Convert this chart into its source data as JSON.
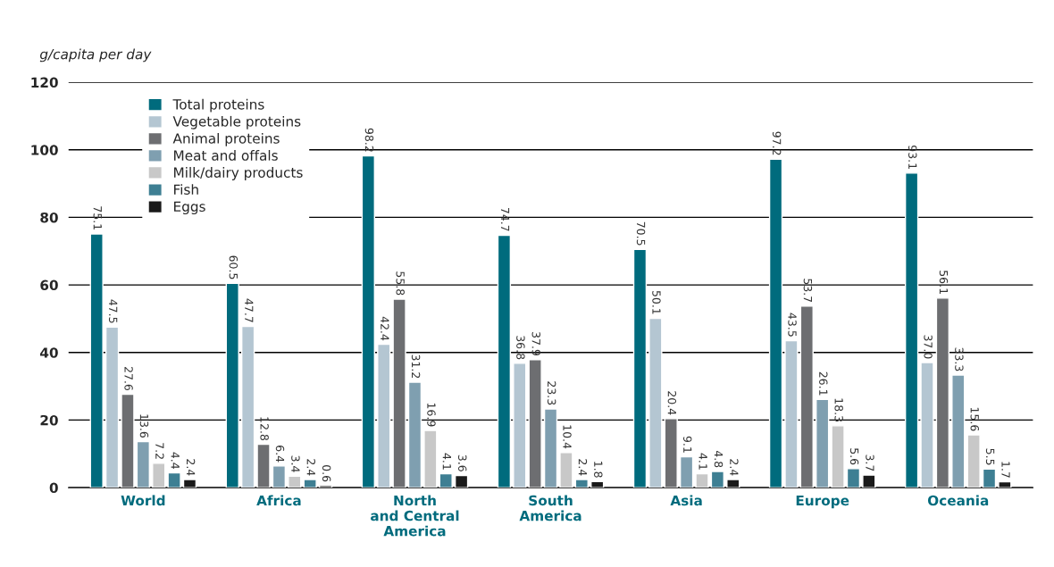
{
  "chart_data": {
    "type": "bar",
    "ylabel": "g/capita per day",
    "categories": [
      "World",
      "Africa",
      "North\nand Central\nAmerica",
      "South\nAmerica",
      "Asia",
      "Europe",
      "Oceania"
    ],
    "series": [
      {
        "name": "Total proteins",
        "color": "#006b7d",
        "values": [
          75.1,
          60.5,
          98.2,
          74.7,
          70.5,
          97.2,
          93.1
        ],
        "value_labels": [
          "75.1",
          "60.5",
          "98.2",
          "74.7",
          "70.5",
          "97.2",
          "93.1"
        ]
      },
      {
        "name": "Vegetable proteins",
        "color": "#b4c6d2",
        "values": [
          47.5,
          47.7,
          42.4,
          36.8,
          50.1,
          43.5,
          37.0
        ],
        "value_labels": [
          "47.5",
          "47.7",
          "42.4",
          "36.8",
          "50.1",
          "43.5",
          "37.0"
        ]
      },
      {
        "name": "Animal proteins",
        "color": "#6d6e71",
        "values": [
          27.6,
          12.8,
          55.8,
          37.9,
          20.4,
          53.7,
          56.1
        ],
        "value_labels": [
          "27.6",
          "12.8",
          "55.8",
          "37.9",
          "20.4",
          "53.7",
          "56.1"
        ]
      },
      {
        "name": "Meat and offals",
        "color": "#7f9fb0",
        "values": [
          13.6,
          6.4,
          31.2,
          23.3,
          9.1,
          26.1,
          33.3
        ],
        "value_labels": [
          "13.6",
          "6.4",
          "31.2",
          "23.3",
          "9.1",
          "26.1",
          "33.3"
        ]
      },
      {
        "name": "Milk/dairy products",
        "color": "#c8c8c8",
        "values": [
          7.2,
          3.4,
          16.9,
          10.4,
          4.1,
          18.3,
          15.6
        ],
        "value_labels": [
          "7.2",
          "3.4",
          "16.9",
          "10.4",
          "4.1",
          "18.3",
          "15.6"
        ]
      },
      {
        "name": "Fish",
        "color": "#3e7f93",
        "values": [
          4.4,
          2.4,
          4.1,
          2.4,
          4.8,
          5.6,
          5.5
        ],
        "value_labels": [
          "4.4",
          "2.4",
          "4.1",
          "2.4",
          "4.8",
          "5.6",
          "5.5"
        ]
      },
      {
        "name": "Eggs",
        "color": "#1a1a1a",
        "values": [
          2.4,
          0.6,
          3.6,
          1.8,
          2.4,
          3.7,
          1.7
        ],
        "value_labels": [
          "2.4",
          "0.6",
          "3.6",
          "1.8",
          "2.4",
          "3.7",
          "1.7"
        ]
      }
    ],
    "ylim": [
      0,
      120
    ],
    "yticks": [
      0,
      20,
      40,
      60,
      80,
      100,
      120
    ],
    "grid": "y",
    "legend": "top left"
  }
}
